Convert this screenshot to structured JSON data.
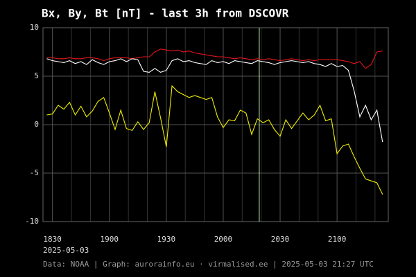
{
  "chart_data": {
    "type": "line",
    "title": "Bx, By, Bt [nT] - last 3h from DSCOVR",
    "date_label": "2025-05-03",
    "footer": "Data: NOAA | Graph: aurorainfo.eu · virmalised.ee | 2025-05-03 21:27 UTC",
    "x": [
      1107,
      1110,
      1113,
      1116,
      1119,
      1122,
      1125,
      1128,
      1131,
      1134,
      1137,
      1140,
      1143,
      1146,
      1149,
      1152,
      1155,
      1158,
      1161,
      1164,
      1167,
      1170,
      1173,
      1176,
      1179,
      1182,
      1185,
      1188,
      1191,
      1194,
      1197,
      1200,
      1203,
      1206,
      1209,
      1212,
      1215,
      1218,
      1221,
      1224,
      1227,
      1230,
      1233,
      1236,
      1239,
      1242,
      1245,
      1248,
      1251,
      1254,
      1257,
      1260,
      1263,
      1266,
      1269,
      1272,
      1275,
      1278,
      1281,
      1284
    ],
    "series": [
      {
        "color": "#e8141c",
        "values": [
          6.9,
          6.9,
          6.8,
          6.8,
          6.9,
          6.8,
          6.8,
          6.9,
          6.9,
          6.8,
          6.6,
          6.8,
          6.9,
          6.9,
          6.9,
          6.8,
          6.9,
          7.0,
          7.0,
          7.5,
          7.8,
          7.7,
          7.6,
          7.7,
          7.5,
          7.6,
          7.4,
          7.3,
          7.2,
          7.1,
          7.0,
          7.0,
          6.9,
          6.8,
          6.9,
          6.8,
          6.7,
          6.8,
          6.7,
          6.8,
          6.7,
          6.6,
          6.7,
          6.8,
          6.7,
          6.6,
          6.7,
          6.6,
          6.7,
          6.7,
          6.7,
          6.7,
          6.6,
          6.5,
          6.3,
          6.5,
          5.8,
          6.2,
          7.5,
          7.6
        ]
      },
      {
        "color": "#ffffff",
        "values": [
          6.8,
          6.6,
          6.5,
          6.4,
          6.6,
          6.3,
          6.5,
          6.2,
          6.7,
          6.4,
          6.2,
          6.5,
          6.6,
          6.8,
          6.5,
          6.8,
          6.7,
          5.5,
          5.4,
          5.8,
          5.4,
          5.6,
          6.6,
          6.8,
          6.5,
          6.6,
          6.4,
          6.3,
          6.2,
          6.6,
          6.4,
          6.5,
          6.3,
          6.6,
          6.5,
          6.4,
          6.3,
          6.6,
          6.5,
          6.4,
          6.2,
          6.4,
          6.5,
          6.6,
          6.5,
          6.4,
          6.5,
          6.3,
          6.2,
          6.0,
          6.3,
          6.0,
          6.1,
          5.6,
          3.5,
          0.8,
          2.0,
          0.5,
          1.5,
          -1.8
        ]
      },
      {
        "color": "#f0f000",
        "values": [
          1.0,
          1.1,
          2.0,
          1.6,
          2.3,
          1.0,
          1.9,
          0.8,
          1.4,
          2.4,
          2.8,
          1.2,
          -0.5,
          1.5,
          -0.4,
          -0.6,
          0.3,
          -0.5,
          0.2,
          3.4,
          0.7,
          -2.3,
          4.0,
          3.4,
          3.1,
          2.8,
          3.0,
          2.8,
          2.6,
          2.8,
          0.8,
          -0.3,
          0.5,
          0.4,
          1.5,
          1.2,
          -1.0,
          0.6,
          0.2,
          0.5,
          -0.5,
          -1.2,
          0.5,
          -0.4,
          0.4,
          1.2,
          0.5,
          1.0,
          2.0,
          0.4,
          0.6,
          -3.0,
          -2.2,
          -2.0,
          -3.3,
          -4.5,
          -5.6,
          -5.8,
          -6.0,
          -7.2
        ]
      }
    ],
    "xlim": [
      1105,
      1287
    ],
    "xticks": [
      {
        "value": 1110,
        "label": "1830"
      },
      {
        "value": 1140,
        "label": "1900"
      },
      {
        "value": 1170,
        "label": "1930"
      },
      {
        "value": 1200,
        "label": "2000"
      },
      {
        "value": 1230,
        "label": "2030"
      },
      {
        "value": 1260,
        "label": "2100"
      }
    ],
    "x_minor_ticks": [
      1120,
      1130,
      1150,
      1160,
      1180,
      1190,
      1210,
      1220,
      1240,
      1250,
      1270,
      1280
    ],
    "ylim": [
      -10,
      10
    ],
    "yticks": [
      -10,
      -5,
      0,
      5,
      10
    ],
    "marker_x": 1219,
    "marker_color": "#b8f0a0",
    "grid": true
  }
}
